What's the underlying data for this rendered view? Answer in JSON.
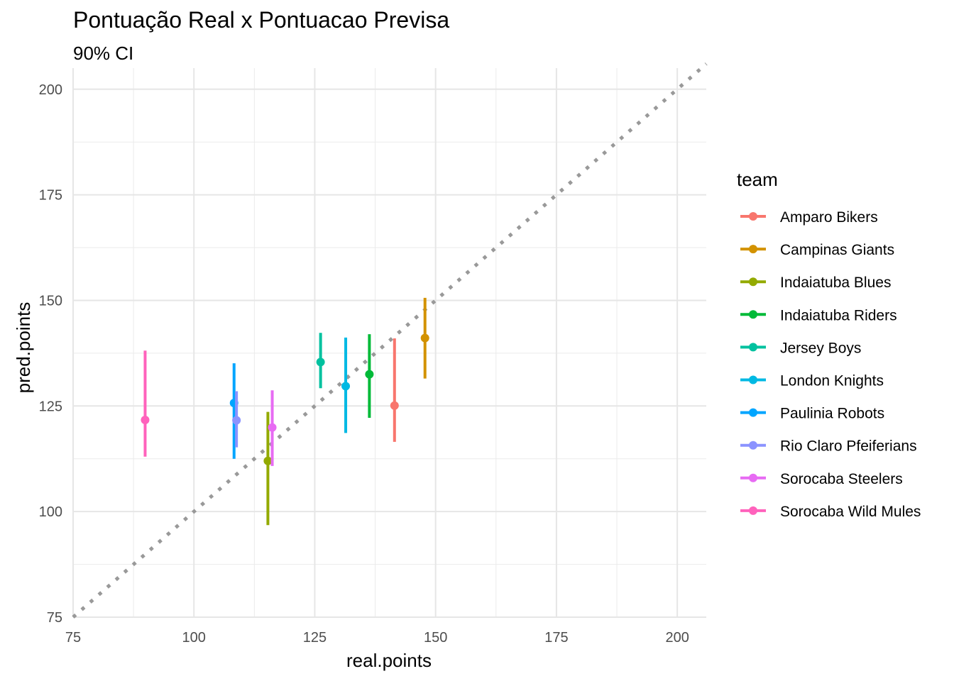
{
  "chart_data": {
    "type": "scatter",
    "title": "Pontuação Real x Pontuacao Previsa",
    "subtitle": "90% CI",
    "xlabel": "real.points",
    "ylabel": "pred.points",
    "xlim": [
      75,
      206
    ],
    "ylim": [
      75,
      205
    ],
    "xticks": [
      75,
      100,
      125,
      150,
      175,
      200
    ],
    "yticks": [
      75,
      100,
      125,
      150,
      175,
      200
    ],
    "grid": true,
    "reference_line": {
      "slope": 1,
      "intercept": 0,
      "style": "dotted",
      "color": "#999999"
    },
    "legend_title": "team",
    "legend_position": "right",
    "series": [
      {
        "name": "Amparo Bikers",
        "color": "#F8766D",
        "x": 141.5,
        "y": 125.1,
        "low": 116.5,
        "high": 141.0
      },
      {
        "name": "Campinas Giants",
        "color": "#D39200",
        "x": 147.8,
        "y": 141.1,
        "low": 131.5,
        "high": 150.6
      },
      {
        "name": "Indaiatuba Blues",
        "color": "#93AA00",
        "x": 115.3,
        "y": 112.0,
        "low": 96.8,
        "high": 123.6
      },
      {
        "name": "Indaiatuba Riders",
        "color": "#00BA38",
        "x": 136.3,
        "y": 132.5,
        "low": 122.2,
        "high": 142.0
      },
      {
        "name": "Jersey Boys",
        "color": "#00C19F",
        "x": 126.2,
        "y": 135.4,
        "low": 129.2,
        "high": 142.3
      },
      {
        "name": "London Knights",
        "color": "#00B9E3",
        "x": 131.4,
        "y": 129.7,
        "low": 118.6,
        "high": 141.2
      },
      {
        "name": "Paulinia Robots",
        "color": "#00A5FF",
        "x": 108.3,
        "y": 125.7,
        "low": 112.5,
        "high": 135.1
      },
      {
        "name": "Rio Claro Pfeiferians",
        "color": "#8B93FF",
        "x": 108.8,
        "y": 121.6,
        "low": 115.2,
        "high": 128.5
      },
      {
        "name": "Sorocaba Steelers",
        "color": "#E76BF3",
        "x": 116.2,
        "y": 119.9,
        "low": 110.8,
        "high": 128.7
      },
      {
        "name": "Sorocaba Wild Mules",
        "color": "#FF62BC",
        "x": 89.9,
        "y": 121.7,
        "low": 113.0,
        "high": 138.1
      }
    ]
  }
}
